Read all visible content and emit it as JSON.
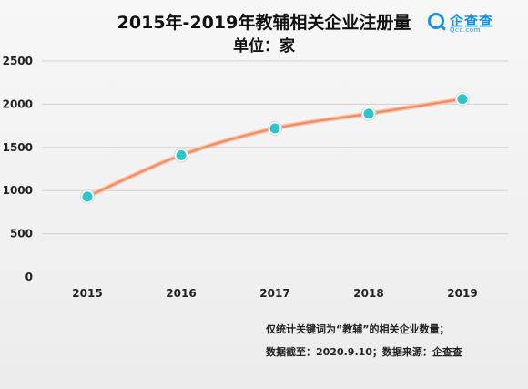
{
  "title": "2015年-2019年教辅相关企业注册量",
  "subtitle": "单位：家",
  "logo": {
    "name": "企查查",
    "domain": "Qcc.com",
    "color": "#1a8fe3"
  },
  "notes": [
    "仅统计关键词为“教辅”的相关企业数量；",
    "数据截至：2020.9.10；数据来源：企查查"
  ],
  "chart_data": {
    "type": "line",
    "x": [
      "2015",
      "2016",
      "2017",
      "2018",
      "2019"
    ],
    "series": [
      {
        "values": [
          930,
          1410,
          1720,
          1890,
          2060
        ]
      }
    ],
    "ylim": [
      0,
      2500
    ],
    "yticks": [
      0,
      500,
      1000,
      1500,
      2000,
      2500
    ],
    "grid": true,
    "line_color": "#f08a5d",
    "marker_color": "#2ec4c8"
  }
}
